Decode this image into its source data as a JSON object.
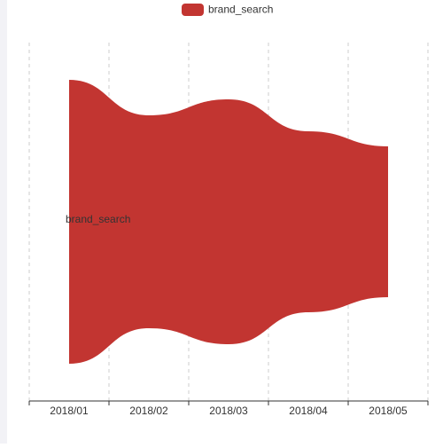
{
  "chart_data": {
    "type": "themeRiver",
    "categories": [
      "2018/01",
      "2018/02",
      "2018/03",
      "2018/04",
      "2018/05"
    ],
    "series": [
      {
        "name": "brand_search",
        "color": "#c23531",
        "values": [
          32,
          24,
          27.6,
          20.4,
          17
        ]
      }
    ]
  }
}
